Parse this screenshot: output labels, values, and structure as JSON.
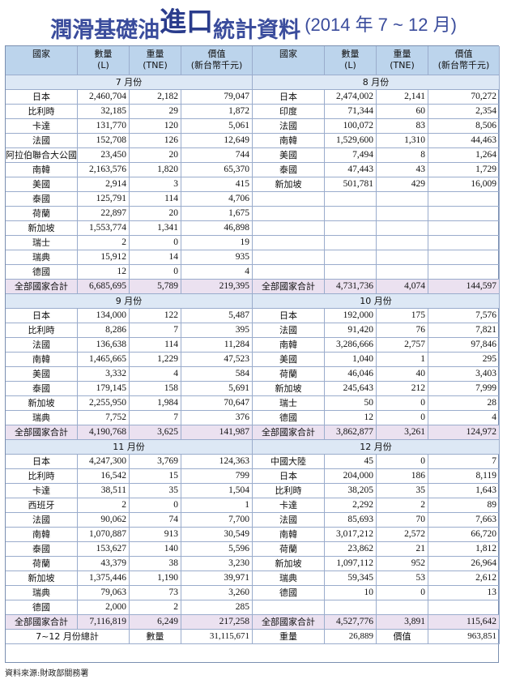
{
  "title": {
    "part1": "潤滑基礎油",
    "part2": "進口",
    "part3": "統計資料",
    "part4": "(2014 年 7 ~ 12 月)"
  },
  "headers": [
    "國家",
    "數量\n(L)",
    "重量\n(TNE)",
    "價值\n(新台幣千元)"
  ],
  "blocks": [
    {
      "left": {
        "month": "7 月份",
        "rows": [
          [
            "日本",
            "2,460,704",
            "2,182",
            "79,047"
          ],
          [
            "比利時",
            "32,185",
            "29",
            "1,872"
          ],
          [
            "卡達",
            "131,770",
            "120",
            "5,061"
          ],
          [
            "法國",
            "152,708",
            "126",
            "12,649"
          ],
          [
            "阿拉伯聯合大公國",
            "23,450",
            "20",
            "744"
          ],
          [
            "南韓",
            "2,163,576",
            "1,820",
            "65,370"
          ],
          [
            "美國",
            "2,914",
            "3",
            "415"
          ],
          [
            "泰國",
            "125,791",
            "114",
            "4,706"
          ],
          [
            "荷蘭",
            "22,897",
            "20",
            "1,675"
          ],
          [
            "新加坡",
            "1,553,774",
            "1,341",
            "46,898"
          ],
          [
            "瑞士",
            "2",
            "0",
            "19"
          ],
          [
            "瑞典",
            "15,912",
            "14",
            "935"
          ],
          [
            "德國",
            "12",
            "0",
            "4"
          ]
        ],
        "total": [
          "全部國家合計",
          "6,685,695",
          "5,789",
          "219,395"
        ]
      },
      "right": {
        "month": "8 月份",
        "rows": [
          [
            "日本",
            "2,474,002",
            "2,141",
            "70,272"
          ],
          [
            "印度",
            "71,344",
            "60",
            "2,354"
          ],
          [
            "法國",
            "100,072",
            "83",
            "8,506"
          ],
          [
            "南韓",
            "1,529,600",
            "1,310",
            "44,463"
          ],
          [
            "美國",
            "7,494",
            "8",
            "1,264"
          ],
          [
            "泰國",
            "47,443",
            "43",
            "1,729"
          ],
          [
            "新加坡",
            "501,781",
            "429",
            "16,009"
          ]
        ],
        "total": [
          "全部國家合計",
          "4,731,736",
          "4,074",
          "144,597"
        ]
      },
      "rows": 13
    },
    {
      "left": {
        "month": "9 月份",
        "rows": [
          [
            "日本",
            "134,000",
            "122",
            "5,487"
          ],
          [
            "比利時",
            "8,286",
            "7",
            "395"
          ],
          [
            "法國",
            "136,638",
            "114",
            "11,284"
          ],
          [
            "南韓",
            "1,465,665",
            "1,229",
            "47,523"
          ],
          [
            "美國",
            "3,332",
            "4",
            "584"
          ],
          [
            "泰國",
            "179,145",
            "158",
            "5,691"
          ],
          [
            "新加坡",
            "2,255,950",
            "1,984",
            "70,647"
          ],
          [
            "瑞典",
            "7,752",
            "7",
            "376"
          ]
        ],
        "total": [
          "全部國家合計",
          "4,190,768",
          "3,625",
          "141,987"
        ]
      },
      "right": {
        "month": "10 月份",
        "rows": [
          [
            "日本",
            "192,000",
            "175",
            "7,576"
          ],
          [
            "法國",
            "91,420",
            "76",
            "7,821"
          ],
          [
            "南韓",
            "3,286,666",
            "2,757",
            "97,846"
          ],
          [
            "美國",
            "1,040",
            "1",
            "295"
          ],
          [
            "荷蘭",
            "46,046",
            "40",
            "3,403"
          ],
          [
            "新加坡",
            "245,643",
            "212",
            "7,999"
          ],
          [
            "瑞士",
            "50",
            "0",
            "28"
          ],
          [
            "德國",
            "12",
            "0",
            "4"
          ]
        ],
        "total": [
          "全部國家合計",
          "3,862,877",
          "3,261",
          "124,972"
        ]
      },
      "rows": 8
    },
    {
      "left": {
        "month": "11 月份",
        "rows": [
          [
            "日本",
            "4,247,300",
            "3,769",
            "124,363"
          ],
          [
            "比利時",
            "16,542",
            "15",
            "799"
          ],
          [
            "卡達",
            "38,511",
            "35",
            "1,504"
          ],
          [
            "西班牙",
            "2",
            "0",
            "1"
          ],
          [
            "法國",
            "90,062",
            "74",
            "7,700"
          ],
          [
            "南韓",
            "1,070,887",
            "913",
            "30,549"
          ],
          [
            "泰國",
            "153,627",
            "140",
            "5,596"
          ],
          [
            "荷蘭",
            "43,379",
            "38",
            "3,230"
          ],
          [
            "新加坡",
            "1,375,446",
            "1,190",
            "39,971"
          ],
          [
            "瑞典",
            "79,063",
            "73",
            "3,260"
          ],
          [
            "德國",
            "2,000",
            "2",
            "285"
          ]
        ],
        "total": [
          "全部國家合計",
          "7,116,819",
          "6,249",
          "217,258"
        ]
      },
      "right": {
        "month": "12 月份",
        "rows": [
          [
            "中國大陸",
            "45",
            "0",
            "7"
          ],
          [
            "日本",
            "204,000",
            "186",
            "8,119"
          ],
          [
            "比利時",
            "38,205",
            "35",
            "1,643"
          ],
          [
            "卡達",
            "2,292",
            "2",
            "89"
          ],
          [
            "法國",
            "85,693",
            "70",
            "7,663"
          ],
          [
            "南韓",
            "3,017,212",
            "2,572",
            "66,720"
          ],
          [
            "荷蘭",
            "23,862",
            "21",
            "1,812"
          ],
          [
            "新加坡",
            "1,097,112",
            "952",
            "26,964"
          ],
          [
            "瑞典",
            "59,345",
            "53",
            "2,612"
          ],
          [
            "德國",
            "10",
            "0",
            "13"
          ]
        ],
        "total": [
          "全部國家合計",
          "4,527,776",
          "3,891",
          "115,642"
        ]
      },
      "rows": 11
    }
  ],
  "footer": [
    "7~12 月份總計",
    "數量",
    "31,115,671",
    "重量",
    "26,889",
    "價值",
    "963,851"
  ],
  "source": "資料來源:財政部關務署"
}
